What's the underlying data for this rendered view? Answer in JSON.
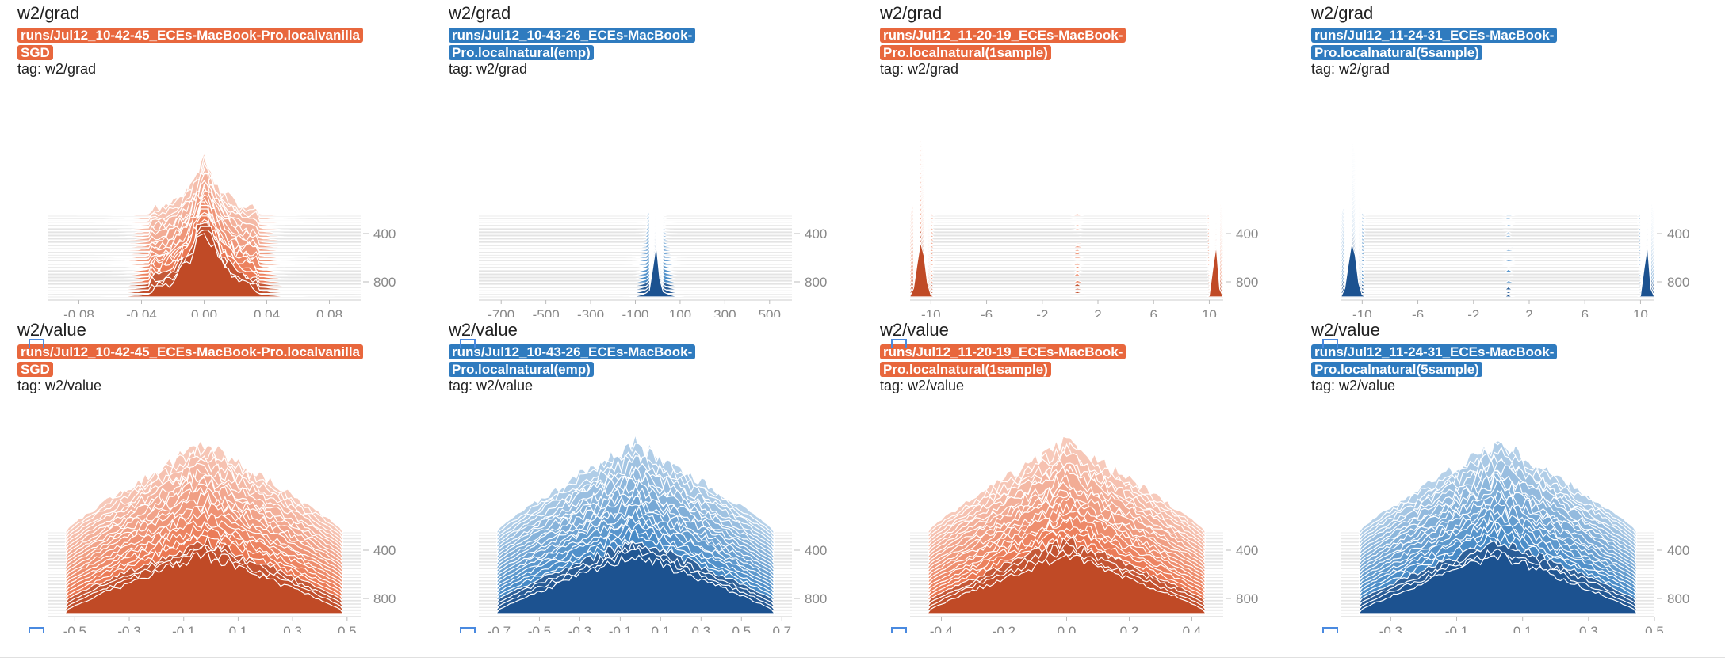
{
  "colors": {
    "orange": "#e8673d",
    "blue": "#2f7bbf",
    "orange_dark": "#c04a26",
    "blue_dark": "#1c5290"
  },
  "cards": [
    {
      "title": "w2/grad",
      "run": "runs/Jul12_10-42-45_ECEs-MacBook-Pro.localvanilla SGD",
      "color": "orange",
      "tag": "tag: w2/grad",
      "hist": {
        "shape": "peak",
        "xlim": [
          -0.1,
          0.1
        ],
        "xticks": [
          "-0.08",
          "-0.04",
          "0.00",
          "0.04",
          "0.08"
        ],
        "xtickvals": [
          -0.08,
          -0.04,
          0,
          0.04,
          0.08
        ],
        "yticks": [
          "400",
          "800"
        ]
      }
    },
    {
      "title": "w2/grad",
      "run": "runs/Jul12_10-43-26_ECEs-MacBook-Pro.localnatural(emp)",
      "color": "blue",
      "tag": "tag: w2/grad",
      "hist": {
        "shape": "spike",
        "xlim": [
          -800,
          600
        ],
        "xticks": [
          "-700",
          "-500",
          "-300",
          "-100",
          "100",
          "300",
          "500"
        ],
        "xtickvals": [
          -700,
          -500,
          -300,
          -100,
          100,
          300,
          500
        ],
        "yticks": [
          "400",
          "800"
        ]
      }
    },
    {
      "title": "w2/grad",
      "run": "runs/Jul12_11-20-19_ECEs-MacBook-Pro.localnatural(1sample)",
      "color": "orange",
      "tag": "tag: w2/grad",
      "hist": {
        "shape": "edges",
        "xlim": [
          -11.5,
          11
        ],
        "xticks": [
          "-10",
          "-6",
          "-2",
          "2",
          "6",
          "10"
        ],
        "xtickvals": [
          -10,
          -6,
          -2,
          2,
          6,
          10
        ],
        "yticks": [
          "400",
          "800"
        ]
      }
    },
    {
      "title": "w2/grad",
      "run": "runs/Jul12_11-24-31_ECEs-MacBook-Pro.localnatural(5sample)",
      "color": "blue",
      "tag": "tag: w2/grad",
      "hist": {
        "shape": "edges",
        "xlim": [
          -11.5,
          11
        ],
        "xticks": [
          "-10",
          "-6",
          "-2",
          "2",
          "6",
          "10"
        ],
        "xtickvals": [
          -10,
          -6,
          -2,
          2,
          6,
          10
        ],
        "yticks": [
          "400",
          "800"
        ]
      }
    },
    {
      "title": "w2/value",
      "run": "runs/Jul12_10-42-45_ECEs-MacBook-Pro.localvanilla SGD",
      "color": "orange",
      "tag": "tag: w2/value",
      "hist": {
        "shape": "bell",
        "xlim": [
          -0.6,
          0.55
        ],
        "xticks": [
          "-0.5",
          "-0.3",
          "-0.1",
          "0.1",
          "0.3",
          "0.5"
        ],
        "xtickvals": [
          -0.5,
          -0.3,
          -0.1,
          0.1,
          0.3,
          0.5
        ],
        "yticks": [
          "400",
          "800"
        ]
      }
    },
    {
      "title": "w2/value",
      "run": "runs/Jul12_10-43-26_ECEs-MacBook-Pro.localnatural(emp)",
      "color": "blue",
      "tag": "tag: w2/value",
      "hist": {
        "shape": "bell",
        "xlim": [
          -0.8,
          0.75
        ],
        "xticks": [
          "-0.7",
          "-0.5",
          "-0.3",
          "-0.1",
          "0.1",
          "0.3",
          "0.5",
          "0.7"
        ],
        "xtickvals": [
          -0.7,
          -0.5,
          -0.3,
          -0.1,
          0.1,
          0.3,
          0.5,
          0.7
        ],
        "yticks": [
          "400",
          "800"
        ]
      }
    },
    {
      "title": "w2/value",
      "run": "runs/Jul12_11-20-19_ECEs-MacBook-Pro.localnatural(1sample)",
      "color": "orange",
      "tag": "tag: w2/value",
      "hist": {
        "shape": "bell",
        "xlim": [
          -0.5,
          0.5
        ],
        "xticks": [
          "-0.4",
          "-0.2",
          "0.0",
          "0.2",
          "0.4"
        ],
        "xtickvals": [
          -0.4,
          -0.2,
          0,
          0.2,
          0.4
        ],
        "yticks": [
          "400",
          "800"
        ]
      }
    },
    {
      "title": "w2/value",
      "run": "runs/Jul12_11-24-31_ECEs-MacBook-Pro.localnatural(5sample)",
      "color": "blue",
      "tag": "tag: w2/value",
      "hist": {
        "shape": "bell",
        "xlim": [
          -0.45,
          0.5
        ],
        "xticks": [
          "-0.3",
          "-0.1",
          "0.1",
          "0.3",
          "0.5"
        ],
        "xtickvals": [
          -0.3,
          -0.1,
          0.1,
          0.3,
          0.5
        ],
        "yticks": [
          "400",
          "800"
        ]
      }
    }
  ]
}
